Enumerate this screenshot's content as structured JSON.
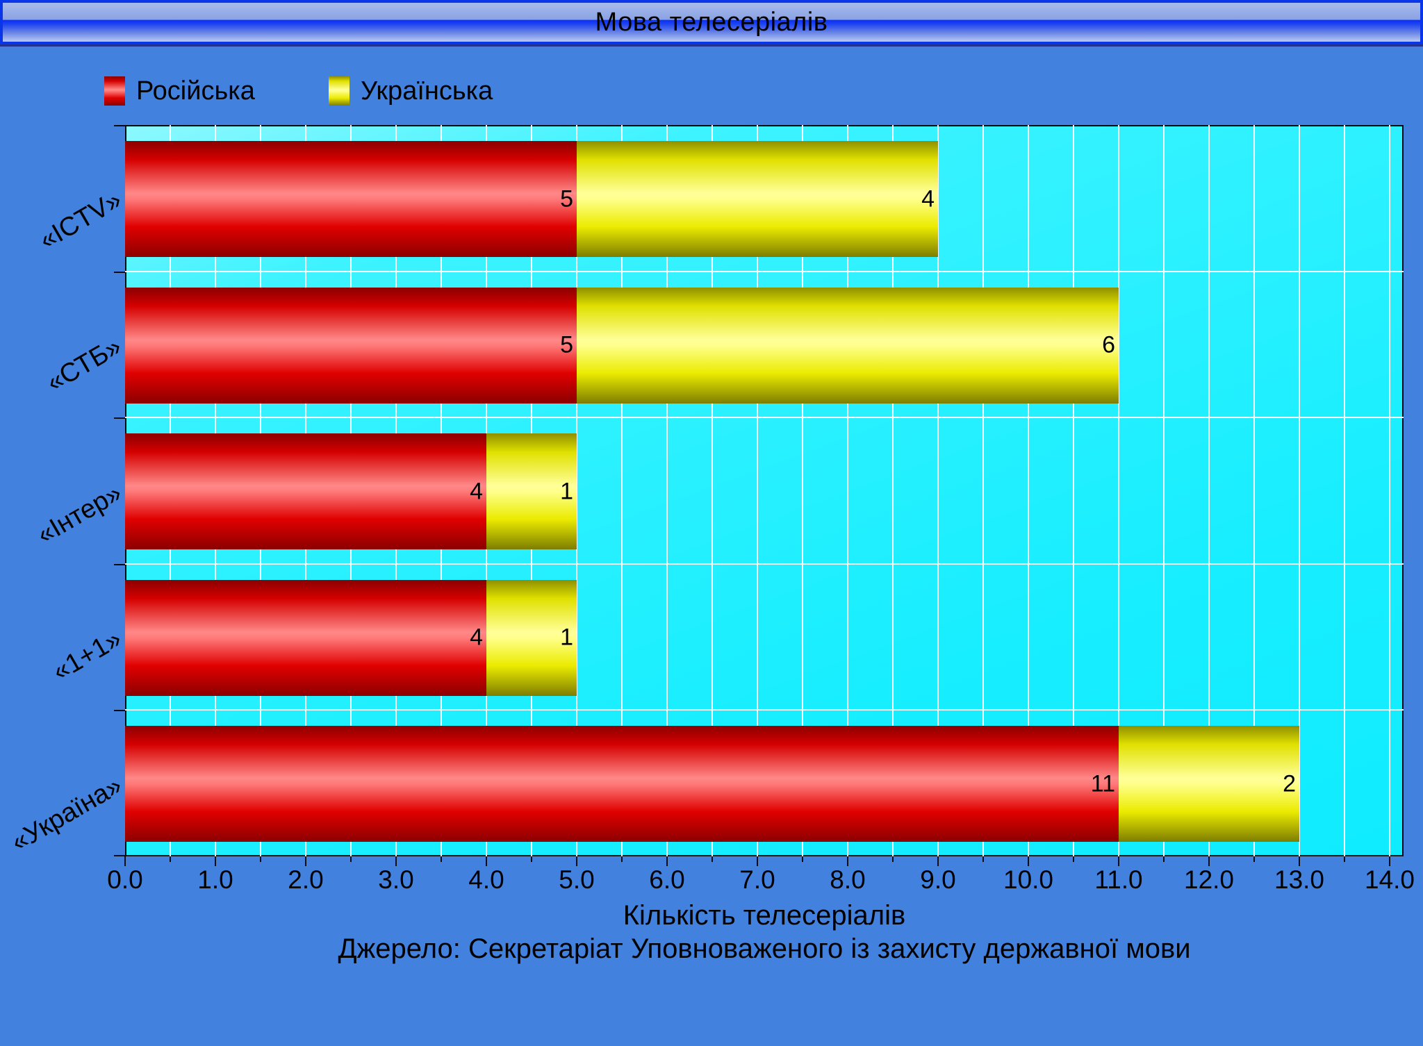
{
  "chart_data": {
    "type": "bar",
    "orientation": "horizontal",
    "stacked": true,
    "title": "Мова телесеріалів",
    "categories": [
      "«ICTV»",
      "«СТБ»",
      "«Інтер»",
      "«1+1»",
      "«Україна»"
    ],
    "series": [
      {
        "name": "Російська",
        "color": "#e00000",
        "values": [
          5,
          5,
          4,
          4,
          11
        ]
      },
      {
        "name": "Українська",
        "color": "#ebeb00",
        "values": [
          4,
          6,
          1,
          1,
          2
        ]
      }
    ],
    "totals": [
      9,
      11,
      5,
      5,
      13
    ],
    "xlabel": "Кількість телесеріалів",
    "source": "Джерело: Секретаріат Уповноваженого із захисту державної мови",
    "xlim": [
      0,
      14.2
    ],
    "xtick_step": 1.0,
    "xtick_labels": [
      "0.0",
      "1.0",
      "2.0",
      "3.0",
      "4.0",
      "5.0",
      "6.0",
      "7.0",
      "8.0",
      "9.0",
      "10.0",
      "11.0",
      "12.0",
      "13.0",
      "14.0"
    ],
    "grid": true,
    "gridline_color": "#ffffff",
    "minor_gridline_step": 0.5,
    "legend_position": "top-left",
    "plot_background_color": "#17eeff",
    "page_background_color": "#4381de",
    "titlebar_accent_color": "#0a36ea",
    "value_labels": "inside-end"
  }
}
